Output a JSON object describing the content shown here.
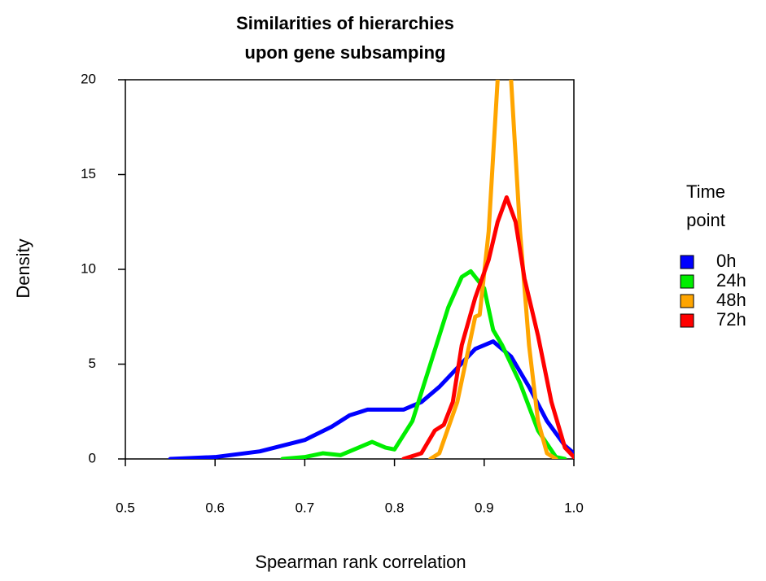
{
  "chart_data": {
    "type": "line",
    "title": [
      "Similarities of hierarchies",
      "upon gene subsamping"
    ],
    "xlabel": "Spearman rank correlation",
    "ylabel": "Density",
    "legend_title": [
      "Time",
      "point"
    ],
    "legend_position": "right",
    "xlim": [
      0.5,
      1.0
    ],
    "ylim": [
      0,
      20
    ],
    "xticks": [
      0.5,
      0.6,
      0.7,
      0.8,
      0.9,
      {
        "value": 1.0,
        "label": "1.0"
      }
    ],
    "yticks": [
      0,
      5,
      10,
      15,
      20
    ],
    "series": [
      {
        "name": "0h",
        "color": "#0000ff",
        "x": [
          0.55,
          0.6,
          0.65,
          0.7,
          0.73,
          0.75,
          0.77,
          0.79,
          0.81,
          0.83,
          0.85,
          0.87,
          0.89,
          0.91,
          0.93,
          0.95,
          0.97,
          0.99,
          1.0
        ],
        "values": [
          0,
          0.1,
          0.4,
          1.0,
          1.7,
          2.3,
          2.6,
          2.6,
          2.6,
          3.0,
          3.8,
          4.8,
          5.8,
          6.2,
          5.4,
          3.8,
          2.0,
          0.7,
          0.3
        ]
      },
      {
        "name": "24h",
        "color": "#00ee00",
        "x": [
          0.675,
          0.7,
          0.72,
          0.74,
          0.76,
          0.775,
          0.79,
          0.8,
          0.82,
          0.84,
          0.86,
          0.875,
          0.885,
          0.9,
          0.91,
          0.92,
          0.94,
          0.96,
          0.98,
          0.99
        ],
        "values": [
          0,
          0.1,
          0.3,
          0.2,
          0.6,
          0.9,
          0.6,
          0.5,
          2.0,
          5.0,
          8.0,
          9.6,
          9.9,
          9.0,
          6.8,
          6.0,
          4.0,
          1.5,
          0.1,
          0
        ]
      },
      {
        "name": "48h",
        "color": "#ffa500",
        "x": [
          0.84,
          0.85,
          0.87,
          0.89,
          0.895,
          0.905,
          0.915,
          0.92,
          0.925,
          0.93,
          0.94,
          0.95,
          0.96,
          0.97,
          0.98
        ],
        "values": [
          0,
          0.3,
          3,
          7.5,
          7.6,
          12,
          20,
          24,
          24,
          20,
          12,
          6,
          2,
          0.3,
          0
        ]
      },
      {
        "name": "72h",
        "color": "#ff0000",
        "x": [
          0.81,
          0.83,
          0.845,
          0.855,
          0.865,
          0.875,
          0.89,
          0.905,
          0.915,
          0.925,
          0.935,
          0.945,
          0.96,
          0.975,
          0.99,
          1.0
        ],
        "values": [
          0,
          0.3,
          1.5,
          1.8,
          3,
          6,
          8.5,
          10.5,
          12.5,
          13.8,
          12.5,
          9.5,
          6.5,
          3,
          0.6,
          0.1
        ]
      }
    ]
  }
}
